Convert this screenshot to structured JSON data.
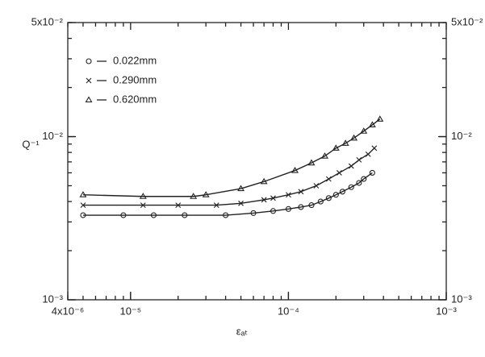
{
  "chart_data": {
    "type": "scatter",
    "xlabel": "εₐₜ",
    "ylabel": "Q⁻¹",
    "log_x": true,
    "log_y": true,
    "xlim": [
      4e-06,
      0.001
    ],
    "ylim": [
      0.001,
      0.05
    ],
    "xticks": [
      {
        "value": 4e-06,
        "label": "4x10⁻⁶"
      },
      {
        "value": 1e-05,
        "label": "10⁻⁵"
      },
      {
        "value": 0.0001,
        "label": "10⁻⁴"
      },
      {
        "value": 0.001,
        "label": "10⁻³"
      }
    ],
    "yticks": [
      {
        "value": 0.001,
        "label": "10⁻³"
      },
      {
        "value": 0.01,
        "label": "10⁻²"
      },
      {
        "value": 0.05,
        "label": "5x10⁻²"
      }
    ],
    "legend": "upper left",
    "series": [
      {
        "name": "0.022mm",
        "marker": "circle",
        "color": "#222222",
        "x": [
          5e-06,
          9e-06,
          1.4e-05,
          2.2e-05,
          4e-05,
          6e-05,
          8e-05,
          0.0001,
          0.00012,
          0.00014,
          0.00016,
          0.00018,
          0.0002,
          0.00022,
          0.00025,
          0.00028,
          0.0003,
          0.00034
        ],
        "values": [
          0.0033,
          0.0033,
          0.0033,
          0.0033,
          0.0033,
          0.0034,
          0.0035,
          0.0036,
          0.0037,
          0.0038,
          0.004,
          0.0042,
          0.0044,
          0.0046,
          0.0049,
          0.0052,
          0.0055,
          0.006
        ]
      },
      {
        "name": "0.290mm",
        "marker": "x",
        "color": "#222222",
        "x": [
          5e-06,
          1.2e-05,
          2e-05,
          3.5e-05,
          5e-05,
          7e-05,
          8e-05,
          0.0001,
          0.00012,
          0.00015,
          0.00018,
          0.00021,
          0.00025,
          0.00028,
          0.00032,
          0.00035
        ],
        "values": [
          0.0038,
          0.0038,
          0.0038,
          0.0038,
          0.0039,
          0.0041,
          0.0042,
          0.0044,
          0.0046,
          0.005,
          0.0055,
          0.006,
          0.0066,
          0.0072,
          0.0078,
          0.0085
        ]
      },
      {
        "name": "0.620mm",
        "marker": "triangle",
        "color": "#222222",
        "x": [
          5e-06,
          1.2e-05,
          2.5e-05,
          3e-05,
          5e-05,
          7e-05,
          0.00011,
          0.00014,
          0.00017,
          0.0002,
          0.00023,
          0.00026,
          0.0003,
          0.00034,
          0.00038
        ],
        "values": [
          0.0044,
          0.0043,
          0.0043,
          0.0044,
          0.0048,
          0.0053,
          0.0062,
          0.0069,
          0.0076,
          0.0085,
          0.0091,
          0.0098,
          0.0108,
          0.0118,
          0.0128
        ]
      }
    ]
  }
}
